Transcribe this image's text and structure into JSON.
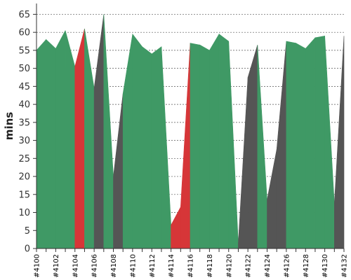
{
  "chart_data": {
    "type": "area",
    "ylabel": "mins",
    "xlabel": "",
    "ylim": [
      0,
      68
    ],
    "yticks": [
      0,
      5,
      10,
      15,
      20,
      25,
      30,
      35,
      40,
      45,
      50,
      55,
      60,
      65
    ],
    "grid": true,
    "categories": [
      "#4100",
      "#4101",
      "#4102",
      "#4103",
      "#4104",
      "#4105",
      "#4106",
      "#4107",
      "#4108",
      "#4109",
      "#4110",
      "#4111",
      "#4112",
      "#4113",
      "#4114",
      "#4115",
      "#4116",
      "#4117",
      "#4118",
      "#4119",
      "#4120",
      "#4121",
      "#4122",
      "#4123",
      "#4124",
      "#4125",
      "#4126",
      "#4127",
      "#4128",
      "#4129",
      "#4130",
      "#4131",
      "#4132"
    ],
    "tick_labels": [
      "#4100",
      "#4102",
      "#4104",
      "#4106",
      "#4108",
      "#4110",
      "#4112",
      "#4114",
      "#4116",
      "#4118",
      "#4120",
      "#4122",
      "#4124",
      "#4126",
      "#4128",
      "#4130",
      "#4132"
    ],
    "values": [
      55,
      58,
      55.5,
      60.5,
      50.5,
      61,
      44.5,
      65,
      20,
      43,
      59.5,
      56,
      54,
      56,
      6.5,
      11.5,
      57,
      56.5,
      55,
      59.5,
      57.5,
      1.5,
      47.5,
      56.5,
      13.5,
      27.5,
      57.5,
      57,
      55.5,
      58.5,
      59,
      12.5,
      59
    ],
    "status": [
      "success",
      "success",
      "success",
      "success",
      "failure",
      "success",
      "aborted",
      "success",
      "aborted",
      "success",
      "success",
      "success",
      "success",
      "success",
      "failure",
      "failure",
      "success",
      "success",
      "success",
      "success",
      "success",
      "aborted",
      "aborted",
      "success",
      "aborted",
      "aborted",
      "success",
      "success",
      "success",
      "success",
      "success",
      "aborted",
      "success"
    ],
    "colors": {
      "success": "#3f9965",
      "failure": "#d63638",
      "aborted": "#555555"
    }
  }
}
